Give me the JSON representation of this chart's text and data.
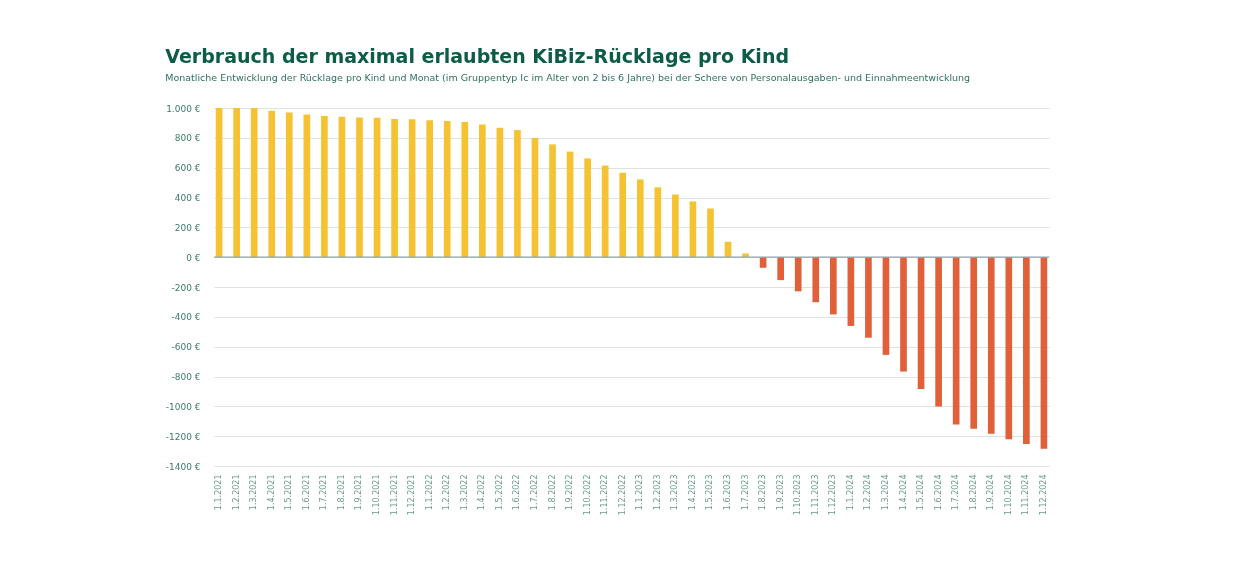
{
  "chart_data": {
    "type": "bar",
    "title": "Verbrauch der maximal erlaubten KiBiz-Rücklage pro Kind",
    "subtitle": "Monatliche Entwicklung der Rücklage pro Kind und Monat (im Gruppentyp Ic im Alter von 2 bis 6 Jahre) bei der Schere von Personalausgaben- und Einnahmeentwicklung",
    "categories": [
      "1.1.2021",
      "1.2.2021",
      "1.3.2021",
      "1.4.2021",
      "1.5.2021",
      "1.6.2021",
      "1.7.2021",
      "1.8.2021",
      "1.9.2021",
      "1.10.2021",
      "1.11.2021",
      "1.12.2021",
      "1.1.2022",
      "1.2.2022",
      "1.3.2022",
      "1.4.2022",
      "1.5.2022",
      "1.6.2022",
      "1.7.2022",
      "1.8.2022",
      "1.9.2022",
      "1.10.2022",
      "1.11.2022",
      "1.12.2022",
      "1.1.2023",
      "1.2.2023",
      "1.3.2023",
      "1.4.2023",
      "1.5.2023",
      "1.6.2023",
      "1.7.2023",
      "1.8.2023",
      "1.9.2023",
      "1.10.2023",
      "1.11.2023",
      "1.12.2023",
      "1.1.2024",
      "1.2.2024",
      "1.3.2024",
      "1.4.2024",
      "1.5.2024",
      "1.6.2024",
      "1.7.2024",
      "1.8.2024",
      "1.9.2024",
      "1.10.2024",
      "1.11.2024",
      "1.12.2024"
    ],
    "values": [
      1000,
      1000,
      1000,
      982,
      970,
      957,
      947,
      941,
      936,
      934,
      927,
      925,
      918,
      913,
      906,
      890,
      868,
      852,
      799,
      756,
      708,
      662,
      614,
      566,
      521,
      468,
      420,
      374,
      326,
      103,
      25,
      -71,
      -154,
      -229,
      -302,
      -384,
      -461,
      -540,
      -655,
      -767,
      -884,
      -1001,
      -1122,
      -1151,
      -1184,
      -1221,
      -1252,
      -1285
    ],
    "colors": [
      "#f5c232",
      "#f5c232",
      "#f5c232",
      "#f5c232",
      "#f5c232",
      "#f5c232",
      "#f5c232",
      "#f5c232",
      "#f5c232",
      "#f5c232",
      "#f5c232",
      "#f5c232",
      "#f5c232",
      "#f5c232",
      "#f5c232",
      "#f5c232",
      "#f5c232",
      "#f5c232",
      "#f5c232",
      "#f5c232",
      "#f5c232",
      "#f5c232",
      "#f5c232",
      "#f5c232",
      "#f5c232",
      "#f5c232",
      "#f5c232",
      "#f5c232",
      "#f5c232",
      "#f5c232",
      "#f5c232",
      "#e0603a",
      "#e0603a",
      "#e0603a",
      "#e0603a",
      "#e0603a",
      "#e0603a",
      "#e0603a",
      "#e0603a",
      "#e0603a",
      "#e0603a",
      "#e0603a",
      "#e0603a",
      "#e0603a",
      "#e0603a",
      "#e0603a",
      "#e0603a",
      "#e0603a"
    ],
    "ylim": [
      -1400,
      1000
    ],
    "yticks": [
      {
        "value": 1000,
        "label": "1.000 €"
      },
      {
        "value": 800,
        "label": "800 €"
      },
      {
        "value": 600,
        "label": "600 €"
      },
      {
        "value": 400,
        "label": "400 €"
      },
      {
        "value": 200,
        "label": "200 €"
      },
      {
        "value": 0,
        "label": "0 €"
      },
      {
        "value": -200,
        "label": "-200 €"
      },
      {
        "value": -400,
        "label": "-400 €"
      },
      {
        "value": -600,
        "label": "-600 €"
      },
      {
        "value": -800,
        "label": "-800 €"
      },
      {
        "value": -1000,
        "label": "-1000 €"
      },
      {
        "value": -1200,
        "label": "-1200 €"
      },
      {
        "value": -1400,
        "label": "-1400 €"
      }
    ],
    "grid": "y"
  }
}
